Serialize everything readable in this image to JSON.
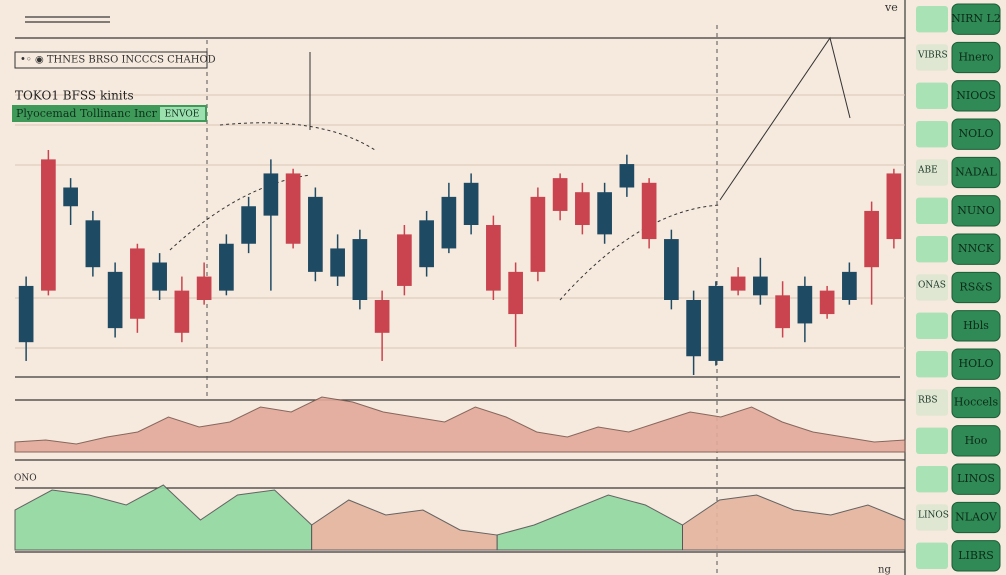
{
  "header": {
    "top_mark": "ve",
    "legend_box": "•◦ ◉ THNES BRSO INCCCS CHAHOD",
    "subtitle": "TOKO1 BFSS kinits",
    "banner": "Plyocemad Tollinanc Incr",
    "banner_tag": "ENVOE",
    "panel_mark": "ONO",
    "footer_mark": "ng"
  },
  "side_buttons": [
    "NIRN L2",
    "Hnero",
    "NIOOS",
    "NOLO",
    "NADAL",
    "NUNO",
    "NNCK",
    "RS&S",
    "Hbls",
    "HOLO",
    "Hoccels",
    "Hoo",
    "LINOS",
    "NLAOV",
    "LIBRS"
  ],
  "side_tags": [
    "VIBRS",
    "ABE",
    "ONAS",
    "RBS",
    "LINOS"
  ],
  "chart_data": {
    "type": "candlestick",
    "up_color": "#1f4a63",
    "down_color": "#c9444f",
    "candles": [
      {
        "open": 45,
        "high": 115,
        "low": 25,
        "close": 105
      },
      {
        "open": 240,
        "high": 250,
        "low": 95,
        "close": 100
      },
      {
        "open": 190,
        "high": 220,
        "low": 170,
        "close": 210
      },
      {
        "open": 125,
        "high": 185,
        "low": 115,
        "close": 175
      },
      {
        "open": 60,
        "high": 130,
        "low": 50,
        "close": 120
      },
      {
        "open": 145,
        "high": 150,
        "low": 55,
        "close": 70
      },
      {
        "open": 100,
        "high": 140,
        "low": 90,
        "close": 130
      },
      {
        "open": 100,
        "high": 115,
        "low": 45,
        "close": 55
      },
      {
        "open": 115,
        "high": 130,
        "low": 85,
        "close": 90
      },
      {
        "open": 100,
        "high": 160,
        "low": 95,
        "close": 150
      },
      {
        "open": 150,
        "high": 200,
        "low": 140,
        "close": 190
      },
      {
        "open": 180,
        "high": 240,
        "low": 100,
        "close": 225
      },
      {
        "open": 225,
        "high": 230,
        "low": 145,
        "close": 150
      },
      {
        "open": 120,
        "high": 210,
        "low": 110,
        "close": 200
      },
      {
        "open": 115,
        "high": 160,
        "low": 105,
        "close": 145
      },
      {
        "open": 90,
        "high": 165,
        "low": 80,
        "close": 155
      },
      {
        "open": 90,
        "high": 100,
        "low": 25,
        "close": 55
      },
      {
        "open": 160,
        "high": 170,
        "low": 95,
        "close": 105
      },
      {
        "open": 125,
        "high": 185,
        "low": 115,
        "close": 175
      },
      {
        "open": 145,
        "high": 215,
        "low": 140,
        "close": 200
      },
      {
        "open": 170,
        "high": 225,
        "low": 160,
        "close": 215
      },
      {
        "open": 170,
        "high": 180,
        "low": 90,
        "close": 100
      },
      {
        "open": 120,
        "high": 130,
        "low": 40,
        "close": 75
      },
      {
        "open": 200,
        "high": 210,
        "low": 110,
        "close": 120
      },
      {
        "open": 220,
        "high": 225,
        "low": 175,
        "close": 185
      },
      {
        "open": 205,
        "high": 215,
        "low": 160,
        "close": 170
      },
      {
        "open": 160,
        "high": 215,
        "low": 150,
        "close": 205
      },
      {
        "open": 210,
        "high": 245,
        "low": 200,
        "close": 235
      },
      {
        "open": 215,
        "high": 220,
        "low": 145,
        "close": 155
      },
      {
        "open": 90,
        "high": 165,
        "low": 80,
        "close": 155
      },
      {
        "open": 30,
        "high": 100,
        "low": 10,
        "close": 90
      },
      {
        "open": 25,
        "high": 110,
        "low": 20,
        "close": 105
      },
      {
        "open": 115,
        "high": 125,
        "low": 95,
        "close": 100
      },
      {
        "open": 95,
        "high": 135,
        "low": 85,
        "close": 115
      },
      {
        "open": 95,
        "high": 110,
        "low": 50,
        "close": 60
      },
      {
        "open": 65,
        "high": 115,
        "low": 45,
        "close": 105
      },
      {
        "open": 100,
        "high": 105,
        "low": 70,
        "close": 75
      },
      {
        "open": 90,
        "high": 130,
        "low": 85,
        "close": 120
      },
      {
        "open": 185,
        "high": 195,
        "low": 85,
        "close": 125
      },
      {
        "open": 225,
        "high": 230,
        "low": 145,
        "close": 155
      }
    ],
    "volume": {
      "color": "#e3a99a",
      "values": [
        10,
        12,
        8,
        15,
        20,
        35,
        25,
        30,
        45,
        40,
        55,
        50,
        40,
        35,
        30,
        45,
        35,
        20,
        15,
        25,
        20,
        30,
        40,
        35,
        45,
        30,
        20,
        15,
        10,
        12
      ]
    },
    "oscillator": [
      {
        "color": "#8fd9a2",
        "values": [
          40,
          60,
          55,
          45,
          65,
          30,
          55,
          60,
          25,
          null,
          null,
          null,
          null,
          15,
          25,
          40,
          55,
          45,
          25,
          null,
          null,
          null,
          null,
          null,
          null
        ]
      },
      {
        "color": "#e5b49f",
        "values": [
          null,
          null,
          null,
          null,
          null,
          null,
          null,
          null,
          25,
          50,
          35,
          40,
          20,
          15,
          null,
          null,
          null,
          null,
          25,
          50,
          55,
          40,
          35,
          45,
          30
        ]
      }
    ]
  }
}
